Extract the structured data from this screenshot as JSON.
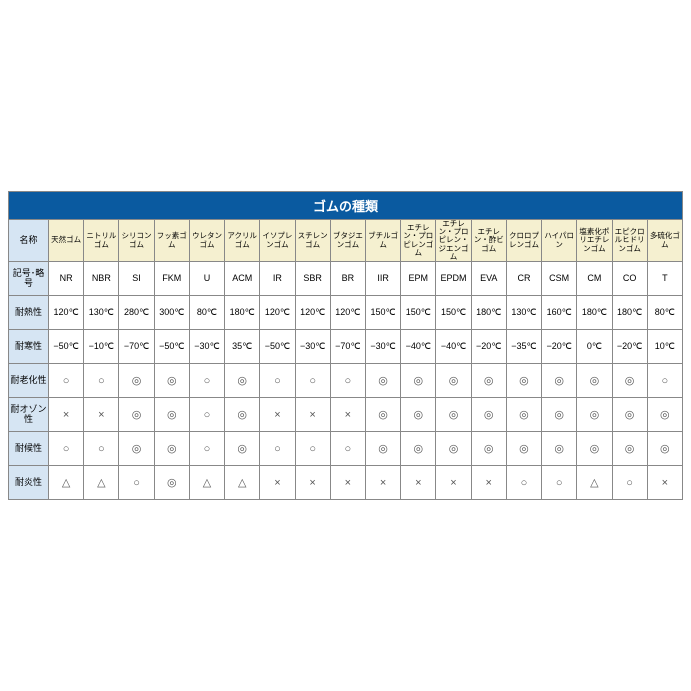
{
  "title": "ゴムの種類",
  "row_headers": [
    "名称",
    "記号･略号",
    "耐熱性",
    "耐寒性",
    "耐老化性",
    "耐オゾン性",
    "耐候性",
    "耐炎性"
  ],
  "col_headers": [
    "天然ゴム",
    "ニトリルゴム",
    "シリコンゴム",
    "フッ素ゴム",
    "ウレタンゴム",
    "アクリルゴム",
    "イソプレンゴム",
    "スチレンゴム",
    "ブタジエンゴム",
    "ブチルゴム",
    "エチレン・プロピレンゴム",
    "エチレン・プロピレン・ジエンゴム",
    "エチレン・酢ビゴム",
    "クロロプレンゴム",
    "ハイパロン",
    "塩素化ポリエチレンゴム",
    "エピクロルヒドリンゴム",
    "多硫化ゴム"
  ],
  "rows": {
    "code": [
      "NR",
      "NBR",
      "SI",
      "FKM",
      "U",
      "ACM",
      "IR",
      "SBR",
      "BR",
      "IIR",
      "EPM",
      "EPDM",
      "EVA",
      "CR",
      "CSM",
      "CM",
      "CO",
      "T"
    ],
    "heat": [
      "120℃",
      "130℃",
      "280℃",
      "300℃",
      "80℃",
      "180℃",
      "120℃",
      "120℃",
      "120℃",
      "150℃",
      "150℃",
      "150℃",
      "180℃",
      "130℃",
      "160℃",
      "180℃",
      "180℃",
      "80℃"
    ],
    "cold": [
      "−50℃",
      "−10℃",
      "−70℃",
      "−50℃",
      "−30℃",
      "35℃",
      "−50℃",
      "−30℃",
      "−70℃",
      "−30℃",
      "−40℃",
      "−40℃",
      "−20℃",
      "−35℃",
      "−20℃",
      "0℃",
      "−20℃",
      "10℃"
    ],
    "aging": [
      "○",
      "○",
      "◎",
      "◎",
      "○",
      "◎",
      "○",
      "○",
      "○",
      "◎",
      "◎",
      "◎",
      "◎",
      "◎",
      "◎",
      "◎",
      "◎",
      "○"
    ],
    "ozone": [
      "×",
      "×",
      "◎",
      "◎",
      "○",
      "◎",
      "×",
      "×",
      "×",
      "◎",
      "◎",
      "◎",
      "◎",
      "◎",
      "◎",
      "◎",
      "◎",
      "◎"
    ],
    "weather": [
      "○",
      "○",
      "◎",
      "◎",
      "○",
      "◎",
      "○",
      "○",
      "○",
      "◎",
      "◎",
      "◎",
      "◎",
      "◎",
      "◎",
      "◎",
      "◎",
      "◎"
    ],
    "flame": [
      "△",
      "△",
      "○",
      "◎",
      "△",
      "△",
      "×",
      "×",
      "×",
      "×",
      "×",
      "×",
      "×",
      "○",
      "○",
      "△",
      "○",
      "×"
    ]
  },
  "colors": {
    "title_bg": "#0a5aa0",
    "title_fg": "#ffffff",
    "row_header_bg": "#d6e5f3",
    "col_header_bg": "#f5f0d0",
    "border": "#888888",
    "background": "#ffffff"
  }
}
